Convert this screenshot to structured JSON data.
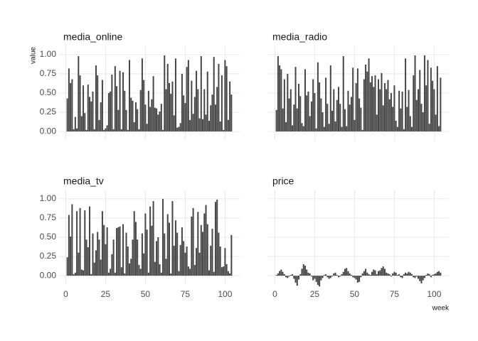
{
  "chart_data": {
    "type": "bar",
    "xlabel": "week",
    "ylabel": "value",
    "color": "#474747",
    "grid": true,
    "xlim": [
      -4.2,
      109.2
    ],
    "ylim": [
      -0.11,
      1.11
    ],
    "xticks": [
      0,
      25,
      50,
      75,
      100
    ],
    "yticks": [
      {
        "value": 0,
        "label": "0.00"
      },
      {
        "value": 0.25,
        "label": "0.25"
      },
      {
        "value": 0.5,
        "label": "0.50"
      },
      {
        "value": 0.75,
        "label": "0.75"
      },
      {
        "value": 1,
        "label": "1.00"
      }
    ],
    "x": [
      1,
      2,
      3,
      4,
      5,
      6,
      7,
      8,
      9,
      10,
      11,
      12,
      13,
      14,
      15,
      16,
      17,
      18,
      19,
      20,
      21,
      22,
      23,
      24,
      25,
      26,
      27,
      28,
      29,
      30,
      31,
      32,
      33,
      34,
      35,
      36,
      37,
      38,
      39,
      40,
      41,
      42,
      43,
      44,
      45,
      46,
      47,
      48,
      49,
      50,
      51,
      52,
      53,
      54,
      55,
      56,
      57,
      58,
      59,
      60,
      61,
      62,
      63,
      64,
      65,
      66,
      67,
      68,
      69,
      70,
      71,
      72,
      73,
      74,
      75,
      76,
      77,
      78,
      79,
      80,
      81,
      82,
      83,
      84,
      85,
      86,
      87,
      88,
      89,
      90,
      91,
      92,
      93,
      94,
      95,
      96,
      97,
      98,
      99,
      100,
      101,
      102,
      103,
      104
    ],
    "facets": [
      {
        "title": "media_online",
        "values": [
          0.43,
          0.82,
          0.63,
          0.68,
          0.03,
          0.19,
          0.04,
          0.98,
          0.73,
          0.2,
          0.6,
          0.24,
          0.02,
          0.61,
          0.45,
          0.39,
          0.52,
          0.03,
          0.86,
          0.73,
          0.15,
          0.38,
          0.67,
          0.02,
          0.04,
          0.08,
          0.5,
          0.52,
          0.74,
          0.03,
          0.85,
          0.59,
          0.28,
          0.79,
          0.03,
          0.77,
          0.53,
          0.28,
          0.02,
          0.93,
          0.44,
          0.4,
          0.12,
          0.38,
          0.29,
          0.03,
          0.54,
          0.95,
          0.67,
          0.35,
          0.1,
          0.53,
          0.32,
          0.42,
          0.72,
          0.31,
          0.3,
          0.22,
          0.26,
          0.36,
          0.02,
          0.99,
          0.55,
          0.88,
          0.63,
          0.49,
          0.65,
          0.21,
          0.95,
          0.05,
          0.06,
          0.11,
          0.75,
          0.47,
          0.37,
          0.84,
          0.93,
          0.15,
          0.66,
          0.23,
          0.45,
          0.79,
          0.55,
          0.17,
          0.98,
          0.16,
          0.55,
          0.22,
          0.78,
          0.14,
          0.34,
          0.48,
          0.97,
          0.35,
          0.58,
          0.88,
          0.13,
          0.73,
          0.02,
          0.93,
          0.85,
          0.15,
          0.65,
          0.48
        ]
      },
      {
        "title": "media_radio",
        "values": [
          0.28,
          0.98,
          0.86,
          0.81,
          0.3,
          0.68,
          0.12,
          0.75,
          0.43,
          0.55,
          0.08,
          0.35,
          0.84,
          0.3,
          0.62,
          0.46,
          0.11,
          0.07,
          0.81,
          0.47,
          0.52,
          0.2,
          0.39,
          0.68,
          0.5,
          0.04,
          0.9,
          0.64,
          0.43,
          0.25,
          0.06,
          0.7,
          0.36,
          0.1,
          0.86,
          0.27,
          0.55,
          0.13,
          0.41,
          0.58,
          0.36,
          0.06,
          0.98,
          0.29,
          0.07,
          0.53,
          0.35,
          0.45,
          0.83,
          0.15,
          0.63,
          0.82,
          0.43,
          0.31,
          0.02,
          0.68,
          0.87,
          0.78,
          0.95,
          0.64,
          0.72,
          0.58,
          0.73,
          0.22,
          0.68,
          0.55,
          0.76,
          0.34,
          0.63,
          0.55,
          0.67,
          0.42,
          0.5,
          0.32,
          0.6,
          0.14,
          0.06,
          0.53,
          0.3,
          0.52,
          0.03,
          0.95,
          0.32,
          0.54,
          0.2,
          0.06,
          0.73,
          0.99,
          0.41,
          0.55,
          0.8,
          0.36,
          0.25,
          0.99,
          0.6,
          0.93,
          0.1,
          0.83,
          0.66,
          0.55,
          0.22,
          0.85,
          0.07,
          0.7
        ]
      },
      {
        "title": "media_tv",
        "values": [
          0.24,
          0.79,
          0.51,
          0.93,
          0.02,
          0.04,
          0.84,
          0.3,
          0.88,
          0.08,
          0.07,
          0.85,
          0.47,
          0.37,
          0.9,
          0.02,
          0.55,
          0.17,
          0.33,
          0.57,
          0.47,
          0.21,
          0.84,
          0.66,
          0.41,
          0.63,
          0.04,
          0.09,
          0.28,
          0.47,
          0.04,
          0.62,
          0.63,
          0.64,
          0.11,
          0.67,
          0.03,
          0.56,
          0.38,
          0.16,
          0.22,
          0.47,
          0.84,
          0.7,
          0.47,
          0.14,
          0.09,
          0.55,
          0.29,
          0.81,
          0.6,
          0.04,
          0.9,
          0.65,
          0.97,
          0.18,
          0.45,
          0.5,
          0.15,
          0.04,
          1.0,
          0.55,
          0.22,
          0.8,
          0.69,
          0.03,
          0.97,
          0.39,
          0.72,
          0.56,
          0.06,
          0.4,
          0.63,
          0.45,
          0.3,
          0.38,
          0.12,
          0.09,
          0.77,
          0.88,
          0.14,
          0.36,
          0.83,
          0.3,
          0.66,
          0.57,
          0.81,
          0.92,
          0.67,
          0.07,
          0.39,
          0.61,
          0.05,
          0.96,
          0.99,
          0.56,
          0.38,
          0.11,
          0.12,
          0.36,
          0.15,
          0.06,
          0.03,
          0.53
        ]
      },
      {
        "title": "price",
        "values": [
          0.01,
          0.03,
          0.06,
          0.08,
          0.05,
          0.02,
          -0.02,
          -0.03,
          -0.01,
          0.01,
          0.02,
          -0.04,
          -0.09,
          -0.13,
          -0.05,
          0.02,
          0.09,
          0.15,
          0.13,
          0.08,
          0.04,
          0.03,
          -0.01,
          -0.06,
          -0.04,
          -0.08,
          -0.12,
          -0.14,
          -0.06,
          -0.03,
          0.01,
          0.02,
          -0.02,
          -0.04,
          -0.03,
          -0.01,
          0.03,
          0.04,
          0.01,
          -0.02,
          -0.01,
          0.02,
          0.05,
          0.09,
          0.1,
          0.06,
          0.03,
          0.01,
          -0.02,
          -0.03,
          -0.05,
          -0.09,
          -0.08,
          -0.02,
          0.03,
          0.06,
          0.09,
          0.04,
          0.02,
          0.01,
          0.05,
          0.08,
          0.07,
          0.02,
          0.06,
          0.07,
          0.1,
          0.12,
          0.09,
          0.04,
          0.03,
          0.02,
          -0.01,
          0.03,
          0.05,
          0.04,
          0.01,
          0.02,
          -0.02,
          -0.03,
          0.02,
          0.04,
          0.03,
          0.05,
          0.04,
          0.02,
          -0.02,
          -0.03,
          -0.01,
          -0.04,
          -0.07,
          -0.1,
          -0.06,
          -0.03,
          0.01,
          0.03,
          0.02,
          -0.02,
          0.01,
          0.02,
          0.03,
          0.05,
          0.06,
          0.04
        ]
      }
    ]
  }
}
